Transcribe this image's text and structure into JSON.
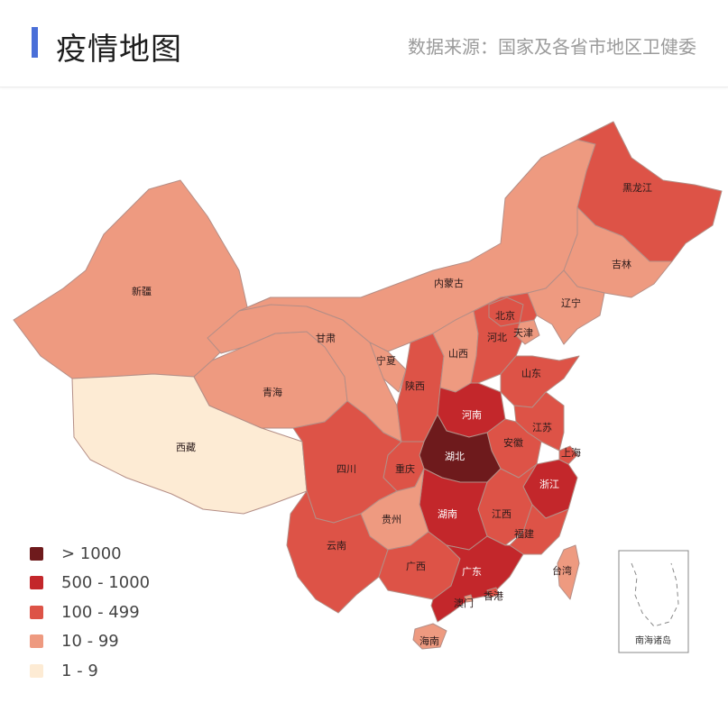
{
  "header": {
    "title": "疫情地图",
    "source": "数据来源：国家及各省市地区卫健委",
    "accent_color": "#4a6fd8"
  },
  "legend": [
    {
      "label": "> 1000",
      "color": "#6e1a1c"
    },
    {
      "label": "500 - 1000",
      "color": "#c3272b"
    },
    {
      "label": "100 - 499",
      "color": "#dd5347"
    },
    {
      "label": "10 - 99",
      "color": "#ee9a80"
    },
    {
      "label": "1 - 9",
      "color": "#fdebd4"
    }
  ],
  "provinces": {
    "heilongjiang": {
      "name": "黑龙江",
      "bin": 2
    },
    "jilin": {
      "name": "吉林",
      "bin": 3
    },
    "liaoning": {
      "name": "辽宁",
      "bin": 3
    },
    "neimenggu": {
      "name": "内蒙古",
      "bin": 3
    },
    "beijing": {
      "name": "北京",
      "bin": 2
    },
    "tianjin": {
      "name": "天津",
      "bin": 3
    },
    "hebei": {
      "name": "河北",
      "bin": 2
    },
    "shanxi": {
      "name": "山西",
      "bin": 3
    },
    "shandong": {
      "name": "山东",
      "bin": 2
    },
    "henan": {
      "name": "河南",
      "bin": 1
    },
    "jiangsu": {
      "name": "江苏",
      "bin": 2
    },
    "anhui": {
      "name": "安徽",
      "bin": 2
    },
    "shanghai": {
      "name": "上海",
      "bin": 2
    },
    "zhejiang": {
      "name": "浙江",
      "bin": 1
    },
    "hubei": {
      "name": "湖北",
      "bin": 0
    },
    "hunan": {
      "name": "湖南",
      "bin": 1
    },
    "jiangxi": {
      "name": "江西",
      "bin": 2
    },
    "fujian": {
      "name": "福建",
      "bin": 2
    },
    "guangdong": {
      "name": "广东",
      "bin": 1
    },
    "guangxi": {
      "name": "广西",
      "bin": 2
    },
    "hainan": {
      "name": "海南",
      "bin": 3
    },
    "chongqing": {
      "name": "重庆",
      "bin": 2
    },
    "sichuan": {
      "name": "四川",
      "bin": 2
    },
    "guizhou": {
      "name": "贵州",
      "bin": 3
    },
    "yunnan": {
      "name": "云南",
      "bin": 2
    },
    "shaanxi": {
      "name": "陕西",
      "bin": 2
    },
    "gansu": {
      "name": "甘肃",
      "bin": 3
    },
    "qinghai": {
      "name": "青海",
      "bin": 3
    },
    "ningxia": {
      "name": "宁夏",
      "bin": 3
    },
    "xinjiang": {
      "name": "新疆",
      "bin": 3
    },
    "xizang": {
      "name": "西藏",
      "bin": 4
    },
    "taiwan": {
      "name": "台湾",
      "bin": 3
    },
    "hongkong": {
      "name": "香港",
      "bin": 2
    },
    "macau": {
      "name": "澳门",
      "bin": 3
    }
  },
  "inset_label": "南海诸岛"
}
